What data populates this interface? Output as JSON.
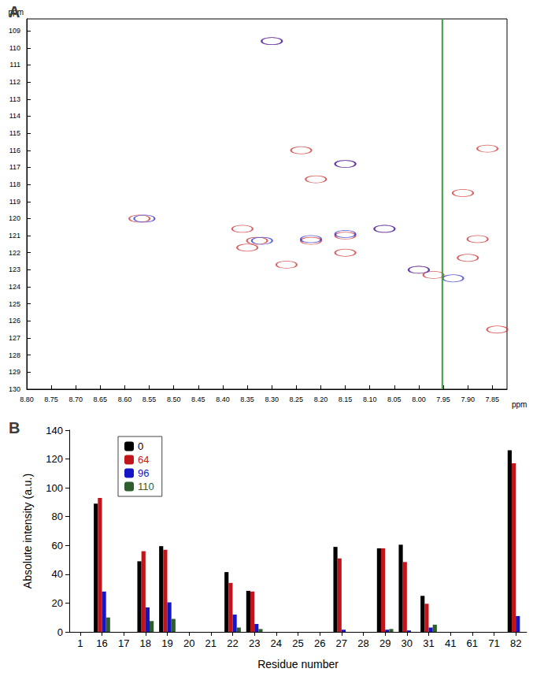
{
  "chart_data": [
    {
      "type": "scatter",
      "title": "A",
      "x_label": "ppm",
      "y_label": "ppm",
      "xlim": [
        8.8,
        7.82
      ],
      "ylim": [
        130,
        108.3
      ],
      "xticks": [
        {
          "value": 8.8,
          "label": "8.80"
        },
        {
          "value": 8.75,
          "label": "8.75"
        },
        {
          "value": 8.7,
          "label": "8.70"
        },
        {
          "value": 8.65,
          "label": "8.65"
        },
        {
          "value": 8.6,
          "label": "8.60"
        },
        {
          "value": 8.55,
          "label": "8.55"
        },
        {
          "value": 8.5,
          "label": "8.50"
        },
        {
          "value": 8.45,
          "label": "8.45"
        },
        {
          "value": 8.4,
          "label": "8.40"
        },
        {
          "value": 8.35,
          "label": "8.35"
        },
        {
          "value": 8.3,
          "label": "8.30"
        },
        {
          "value": 8.25,
          "label": "8.25"
        },
        {
          "value": 8.2,
          "label": "8.20"
        },
        {
          "value": 8.15,
          "label": "8.15"
        },
        {
          "value": 8.1,
          "label": "8.10"
        },
        {
          "value": 8.05,
          "label": "8.05"
        },
        {
          "value": 8.0,
          "label": "8.00"
        },
        {
          "value": 7.95,
          "label": "7.95"
        },
        {
          "value": 7.9,
          "label": "7.90"
        },
        {
          "value": 7.85,
          "label": "7.85"
        }
      ],
      "yticks": [
        109,
        110,
        111,
        112,
        113,
        114,
        115,
        116,
        117,
        118,
        119,
        120,
        121,
        122,
        123,
        124,
        125,
        126,
        127,
        128,
        129,
        130
      ],
      "grid": false,
      "series": [
        {
          "name": "64",
          "color": "#d03a3a",
          "type": "scatter",
          "marker": "ellipse",
          "x": [
            8.3,
            8.57,
            8.24,
            8.21,
            8.15,
            8.33,
            8.35,
            8.36,
            8.22,
            8.15,
            8.15,
            8.07,
            8.27,
            8.0,
            7.97,
            7.91,
            7.88,
            7.9,
            7.84,
            7.86
          ],
          "values": [
            109.6,
            120.0,
            116.0,
            117.7,
            116.8,
            121.3,
            121.7,
            120.6,
            121.3,
            121.0,
            122.0,
            120.6,
            122.7,
            123.0,
            123.3,
            118.5,
            121.2,
            122.3,
            126.5,
            115.9
          ]
        },
        {
          "name": "96",
          "color": "#3a3ad0",
          "type": "scatter",
          "marker": "ellipse",
          "x": [
            8.3,
            8.56,
            8.15,
            8.32,
            8.22,
            8.15,
            8.07,
            8.0,
            7.93
          ],
          "values": [
            109.6,
            120.0,
            116.8,
            121.3,
            121.2,
            120.9,
            120.6,
            123.0,
            123.5
          ]
        },
        {
          "name": "110",
          "color": "#3aa03a",
          "type": "line",
          "line_style": "solid",
          "x": [
            7.952,
            7.952
          ],
          "values": [
            108.3,
            130
          ]
        }
      ]
    },
    {
      "type": "bar",
      "title": "B",
      "x_label": "Residue number",
      "y_label": "Absolute intensity (a.u.)",
      "categories": [
        "1",
        "16",
        "17",
        "18",
        "19",
        "20",
        "21",
        "22",
        "23",
        "24",
        "25",
        "26",
        "27",
        "28",
        "29",
        "30",
        "31",
        "41",
        "61",
        "71",
        "82"
      ],
      "ylim": [
        0,
        140
      ],
      "yticks": [
        0,
        20,
        40,
        60,
        80,
        100,
        120,
        140
      ],
      "grid": false,
      "legend": "upper left",
      "series": [
        {
          "name": "0",
          "color": "#000000",
          "values": [
            0,
            89,
            0,
            49,
            59.5,
            0,
            0,
            41.5,
            28.5,
            0,
            0,
            0,
            59,
            0,
            58,
            60.5,
            25,
            0,
            0,
            0,
            126
          ]
        },
        {
          "name": "64",
          "color": "#c0161b",
          "values": [
            0,
            93,
            0,
            56,
            57,
            0,
            0,
            34,
            28,
            0,
            0,
            0,
            51,
            0,
            58,
            48.5,
            19.5,
            0,
            0,
            0,
            117
          ]
        },
        {
          "name": "96",
          "color": "#1515c8",
          "values": [
            0,
            28,
            0,
            17,
            20.5,
            0,
            0,
            12,
            5.5,
            0,
            0,
            0,
            1.5,
            0,
            1.5,
            1,
            3,
            0,
            0,
            0,
            11
          ]
        },
        {
          "name": "110",
          "color": "#2e5e2e",
          "values": [
            0,
            10,
            0,
            7.5,
            9,
            0,
            0,
            3,
            2,
            0,
            0,
            0,
            0,
            0,
            2,
            0,
            5,
            0,
            0,
            0,
            0
          ]
        }
      ]
    }
  ]
}
